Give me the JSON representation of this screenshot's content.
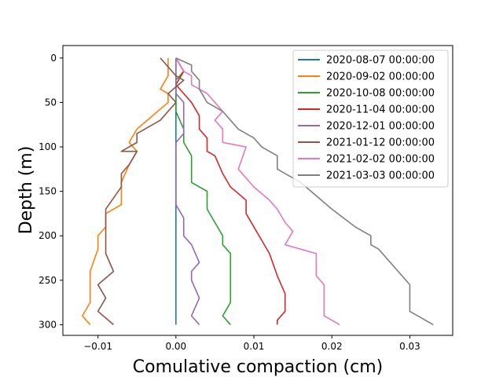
{
  "chart_data": {
    "type": "line",
    "title": "",
    "xlabel": "Comulative compaction (cm)",
    "ylabel": "Depth (m)",
    "xlim": [
      -0.0145,
      0.0355
    ],
    "ylim": [
      312,
      -14
    ],
    "y_inverted": true,
    "grid": false,
    "legend_placement": "top-right",
    "x_ticks": [
      {
        "value": -0.01,
        "label": "−0.01"
      },
      {
        "value": 0.0,
        "label": "0.00"
      },
      {
        "value": 0.01,
        "label": "0.01"
      },
      {
        "value": 0.02,
        "label": "0.02"
      },
      {
        "value": 0.03,
        "label": "0.03"
      }
    ],
    "y_ticks": [
      {
        "value": 0,
        "label": "0"
      },
      {
        "value": 50,
        "label": "50"
      },
      {
        "value": 100,
        "label": "100"
      },
      {
        "value": 150,
        "label": "150"
      },
      {
        "value": 200,
        "label": "200"
      },
      {
        "value": 250,
        "label": "250"
      },
      {
        "value": 300,
        "label": "300"
      }
    ],
    "series": [
      {
        "name": "2020-08-07 00:00:00",
        "color": "#1f77b4",
        "points": [
          [
            0.0,
            0
          ],
          [
            0.0,
            300
          ]
        ]
      },
      {
        "name": "2020-09-02 00:00:00",
        "color": "#ff7f0e",
        "points": [
          [
            -0.001,
            0
          ],
          [
            -0.001,
            20
          ],
          [
            -0.002,
            35
          ],
          [
            -0.001,
            40
          ],
          [
            -0.001,
            50
          ],
          [
            -0.003,
            65
          ],
          [
            -0.005,
            80
          ],
          [
            -0.006,
            95
          ],
          [
            -0.005,
            105
          ],
          [
            -0.006,
            120
          ],
          [
            -0.007,
            140
          ],
          [
            -0.007,
            165
          ],
          [
            -0.009,
            175
          ],
          [
            -0.009,
            190
          ],
          [
            -0.01,
            200
          ],
          [
            -0.01,
            215
          ],
          [
            -0.011,
            240
          ],
          [
            -0.011,
            275
          ],
          [
            -0.012,
            290
          ],
          [
            -0.011,
            300
          ]
        ]
      },
      {
        "name": "2020-10-08 00:00:00",
        "color": "#2ca02c",
        "points": [
          [
            0.0,
            0
          ],
          [
            0.001,
            15
          ],
          [
            0.0,
            25
          ],
          [
            0.0,
            40
          ],
          [
            0.0,
            60
          ],
          [
            0.001,
            80
          ],
          [
            0.001,
            95
          ],
          [
            0.002,
            110
          ],
          [
            0.002,
            125
          ],
          [
            0.002,
            140
          ],
          [
            0.004,
            150
          ],
          [
            0.004,
            170
          ],
          [
            0.005,
            185
          ],
          [
            0.006,
            200
          ],
          [
            0.006,
            210
          ],
          [
            0.007,
            220
          ],
          [
            0.007,
            245
          ],
          [
            0.007,
            275
          ],
          [
            0.006,
            290
          ],
          [
            0.007,
            300
          ]
        ]
      },
      {
        "name": "2020-11-04 00:00:00",
        "color": "#d62728",
        "points": [
          [
            0.0,
            0
          ],
          [
            0.001,
            15
          ],
          [
            0.0,
            30
          ],
          [
            0.001,
            40
          ],
          [
            0.002,
            50
          ],
          [
            0.003,
            65
          ],
          [
            0.003,
            80
          ],
          [
            0.004,
            90
          ],
          [
            0.004,
            105
          ],
          [
            0.005,
            110
          ],
          [
            0.006,
            130
          ],
          [
            0.007,
            145
          ],
          [
            0.009,
            160
          ],
          [
            0.009,
            175
          ],
          [
            0.01,
            190
          ],
          [
            0.011,
            205
          ],
          [
            0.012,
            220
          ],
          [
            0.013,
            245
          ],
          [
            0.014,
            265
          ],
          [
            0.014,
            285
          ],
          [
            0.013,
            295
          ],
          [
            0.013,
            300
          ]
        ]
      },
      {
        "name": "2020-12-01 00:00:00",
        "color": "#9467bd",
        "points": [
          [
            0.0,
            0
          ],
          [
            0.0,
            20
          ],
          [
            0.0,
            40
          ],
          [
            0.001,
            50
          ],
          [
            0.001,
            70
          ],
          [
            0.001,
            85
          ],
          [
            0.0,
            95
          ],
          [
            0.0,
            165
          ],
          [
            0.001,
            180
          ],
          [
            0.001,
            200
          ],
          [
            0.002,
            210
          ],
          [
            0.003,
            230
          ],
          [
            0.002,
            240
          ],
          [
            0.002,
            250
          ],
          [
            0.003,
            270
          ],
          [
            0.002,
            290
          ],
          [
            0.003,
            300
          ]
        ]
      },
      {
        "name": "2021-01-12 00:00:00",
        "color": "#8c564b",
        "points": [
          [
            -0.002,
            0
          ],
          [
            -0.001,
            10
          ],
          [
            0.0,
            20
          ],
          [
            0.001,
            25
          ],
          [
            -0.001,
            40
          ],
          [
            0.0,
            50
          ],
          [
            -0.002,
            70
          ],
          [
            -0.005,
            85
          ],
          [
            -0.005,
            95
          ],
          [
            -0.007,
            105
          ],
          [
            -0.005,
            105
          ],
          [
            -0.006,
            120
          ],
          [
            -0.007,
            130
          ],
          [
            -0.007,
            145
          ],
          [
            -0.009,
            170
          ],
          [
            -0.009,
            205
          ],
          [
            -0.009,
            220
          ],
          [
            -0.008,
            240
          ],
          [
            -0.01,
            255
          ],
          [
            -0.009,
            270
          ],
          [
            -0.01,
            285
          ],
          [
            -0.008,
            300
          ]
        ]
      },
      {
        "name": "2021-02-02 00:00:00",
        "color": "#e377c2",
        "points": [
          [
            0.0,
            0
          ],
          [
            0.001,
            15
          ],
          [
            0.002,
            20
          ],
          [
            0.002,
            30
          ],
          [
            0.003,
            35
          ],
          [
            0.004,
            40
          ],
          [
            0.005,
            50
          ],
          [
            0.006,
            60
          ],
          [
            0.005,
            70
          ],
          [
            0.006,
            80
          ],
          [
            0.006,
            95
          ],
          [
            0.009,
            100
          ],
          [
            0.008,
            125
          ],
          [
            0.01,
            145
          ],
          [
            0.012,
            160
          ],
          [
            0.013,
            170
          ],
          [
            0.014,
            185
          ],
          [
            0.015,
            195
          ],
          [
            0.014,
            210
          ],
          [
            0.018,
            220
          ],
          [
            0.018,
            245
          ],
          [
            0.019,
            255
          ],
          [
            0.019,
            290
          ],
          [
            0.021,
            300
          ]
        ]
      },
      {
        "name": "2021-03-03 00:00:00",
        "color": "#7f7f7f",
        "points": [
          [
            0.0,
            0
          ],
          [
            0.002,
            8
          ],
          [
            0.002,
            15
          ],
          [
            0.003,
            25
          ],
          [
            0.003,
            35
          ],
          [
            0.004,
            50
          ],
          [
            0.006,
            60
          ],
          [
            0.007,
            70
          ],
          [
            0.008,
            80
          ],
          [
            0.01,
            90
          ],
          [
            0.011,
            100
          ],
          [
            0.013,
            110
          ],
          [
            0.013,
            125
          ],
          [
            0.016,
            140
          ],
          [
            0.018,
            155
          ],
          [
            0.02,
            170
          ],
          [
            0.023,
            190
          ],
          [
            0.025,
            200
          ],
          [
            0.025,
            210
          ],
          [
            0.026,
            215
          ],
          [
            0.028,
            235
          ],
          [
            0.029,
            245
          ],
          [
            0.03,
            255
          ],
          [
            0.03,
            270
          ],
          [
            0.03,
            285
          ],
          [
            0.031,
            290
          ],
          [
            0.033,
            300
          ]
        ]
      }
    ]
  }
}
